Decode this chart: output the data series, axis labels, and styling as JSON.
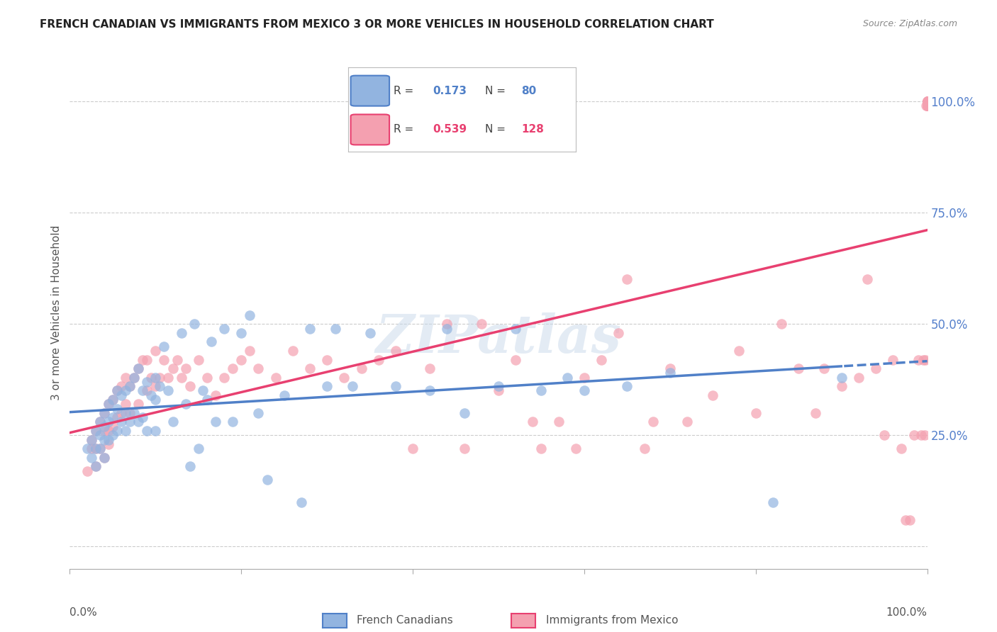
{
  "title": "FRENCH CANADIAN VS IMMIGRANTS FROM MEXICO 3 OR MORE VEHICLES IN HOUSEHOLD CORRELATION CHART",
  "source": "Source: ZipAtlas.com",
  "ylabel": "3 or more Vehicles in Household",
  "legend_label1": "French Canadians",
  "legend_label2": "Immigrants from Mexico",
  "r1": 0.173,
  "n1": 80,
  "r2": 0.539,
  "n2": 128,
  "color1": "#92b4e0",
  "color2": "#f4a0b0",
  "line1_color": "#5080c8",
  "line2_color": "#e84070",
  "watermark": "ZIPatlas",
  "blue_scatter_x": [
    0.02,
    0.025,
    0.025,
    0.03,
    0.03,
    0.03,
    0.035,
    0.035,
    0.035,
    0.04,
    0.04,
    0.04,
    0.04,
    0.045,
    0.045,
    0.045,
    0.05,
    0.05,
    0.05,
    0.055,
    0.055,
    0.055,
    0.06,
    0.06,
    0.065,
    0.065,
    0.065,
    0.07,
    0.07,
    0.075,
    0.075,
    0.08,
    0.08,
    0.085,
    0.085,
    0.09,
    0.09,
    0.095,
    0.1,
    0.1,
    0.1,
    0.105,
    0.11,
    0.115,
    0.12,
    0.13,
    0.135,
    0.14,
    0.145,
    0.15,
    0.155,
    0.16,
    0.165,
    0.17,
    0.18,
    0.19,
    0.2,
    0.21,
    0.22,
    0.23,
    0.25,
    0.27,
    0.28,
    0.3,
    0.31,
    0.33,
    0.35,
    0.38,
    0.42,
    0.44,
    0.46,
    0.5,
    0.52,
    0.55,
    0.58,
    0.6,
    0.65,
    0.7,
    0.82,
    0.9
  ],
  "blue_scatter_y": [
    0.22,
    0.24,
    0.2,
    0.26,
    0.22,
    0.18,
    0.28,
    0.25,
    0.22,
    0.3,
    0.27,
    0.24,
    0.2,
    0.32,
    0.28,
    0.24,
    0.33,
    0.29,
    0.25,
    0.35,
    0.31,
    0.26,
    0.34,
    0.28,
    0.35,
    0.3,
    0.26,
    0.36,
    0.28,
    0.38,
    0.3,
    0.4,
    0.28,
    0.35,
    0.29,
    0.37,
    0.26,
    0.34,
    0.38,
    0.33,
    0.26,
    0.36,
    0.45,
    0.35,
    0.28,
    0.48,
    0.32,
    0.18,
    0.5,
    0.22,
    0.35,
    0.33,
    0.46,
    0.28,
    0.49,
    0.28,
    0.48,
    0.52,
    0.3,
    0.15,
    0.34,
    0.1,
    0.49,
    0.36,
    0.49,
    0.36,
    0.48,
    0.36,
    0.35,
    0.49,
    0.3,
    0.36,
    0.49,
    0.35,
    0.38,
    0.35,
    0.36,
    0.39,
    0.1,
    0.38
  ],
  "pink_scatter_x": [
    0.02,
    0.025,
    0.025,
    0.03,
    0.03,
    0.03,
    0.035,
    0.035,
    0.04,
    0.04,
    0.04,
    0.045,
    0.045,
    0.045,
    0.05,
    0.05,
    0.055,
    0.055,
    0.06,
    0.06,
    0.065,
    0.065,
    0.07,
    0.07,
    0.075,
    0.08,
    0.08,
    0.085,
    0.09,
    0.09,
    0.095,
    0.1,
    0.1,
    0.105,
    0.11,
    0.115,
    0.12,
    0.125,
    0.13,
    0.135,
    0.14,
    0.15,
    0.16,
    0.17,
    0.18,
    0.19,
    0.2,
    0.21,
    0.22,
    0.24,
    0.26,
    0.28,
    0.3,
    0.32,
    0.34,
    0.36,
    0.38,
    0.4,
    0.42,
    0.44,
    0.46,
    0.48,
    0.5,
    0.52,
    0.54,
    0.55,
    0.57,
    0.59,
    0.6,
    0.62,
    0.64,
    0.65,
    0.67,
    0.68,
    0.7,
    0.72,
    0.75,
    0.78,
    0.8,
    0.83,
    0.85,
    0.87,
    0.88,
    0.9,
    0.92,
    0.93,
    0.94,
    0.95,
    0.96,
    0.97,
    0.975,
    0.98,
    0.985,
    0.99,
    0.993,
    0.995,
    0.997,
    0.998,
    0.999,
    1.0,
    1.0,
    1.0,
    1.0,
    1.0,
    1.0,
    1.0,
    1.0,
    1.0,
    1.0,
    1.0,
    1.0,
    1.0,
    1.0,
    1.0,
    1.0,
    1.0,
    1.0,
    1.0,
    1.0,
    1.0,
    1.0,
    1.0,
    1.0,
    1.0,
    1.0,
    1.0,
    1.0,
    1.0
  ],
  "pink_scatter_y": [
    0.17,
    0.22,
    0.24,
    0.26,
    0.22,
    0.18,
    0.28,
    0.22,
    0.3,
    0.26,
    0.2,
    0.32,
    0.26,
    0.23,
    0.33,
    0.27,
    0.35,
    0.29,
    0.36,
    0.3,
    0.38,
    0.32,
    0.36,
    0.3,
    0.38,
    0.4,
    0.32,
    0.42,
    0.42,
    0.35,
    0.38,
    0.44,
    0.36,
    0.38,
    0.42,
    0.38,
    0.4,
    0.42,
    0.38,
    0.4,
    0.36,
    0.42,
    0.38,
    0.34,
    0.38,
    0.4,
    0.42,
    0.44,
    0.4,
    0.38,
    0.44,
    0.4,
    0.42,
    0.38,
    0.4,
    0.42,
    0.44,
    0.22,
    0.4,
    0.5,
    0.22,
    0.5,
    0.35,
    0.42,
    0.28,
    0.22,
    0.28,
    0.22,
    0.38,
    0.42,
    0.48,
    0.6,
    0.22,
    0.28,
    0.4,
    0.28,
    0.34,
    0.44,
    0.3,
    0.5,
    0.4,
    0.3,
    0.4,
    0.36,
    0.38,
    0.6,
    0.4,
    0.25,
    0.42,
    0.22,
    0.06,
    0.06,
    0.25,
    0.42,
    0.25,
    0.42,
    0.25,
    0.42,
    0.99,
    1.0,
    0.99,
    1.0,
    0.99,
    0.99,
    0.99,
    1.0,
    0.99,
    1.0,
    0.99,
    0.99,
    0.99,
    1.0,
    0.99,
    1.0,
    0.99,
    0.99,
    0.99,
    1.0,
    0.99,
    1.0,
    0.99,
    0.99,
    0.99,
    1.0,
    0.99,
    1.0,
    0.99,
    0.99
  ]
}
